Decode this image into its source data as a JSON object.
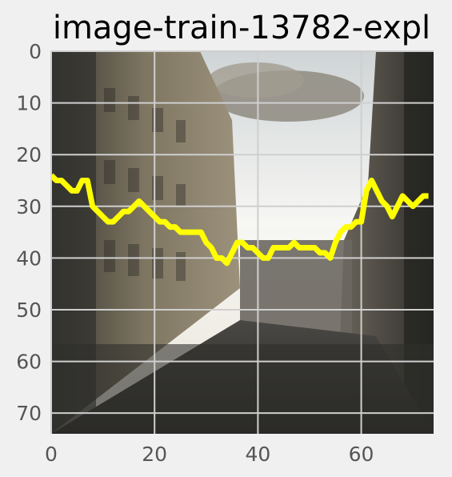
{
  "chart_data": {
    "type": "image",
    "title": "image-train-13782-expl",
    "image_description_colors": {
      "overlay_line": "#ffff00",
      "grid": "#cfcfcf",
      "background": "#f0f0f0"
    },
    "xlim": [
      0,
      74
    ],
    "ylim": [
      74,
      0
    ],
    "x_ticks": [
      0,
      20,
      40,
      60
    ],
    "y_ticks": [
      0,
      10,
      20,
      30,
      40,
      50,
      60,
      70
    ],
    "grid": true,
    "overlay_line": {
      "x": [
        0,
        1,
        2,
        3,
        4,
        5,
        6,
        7,
        8,
        9,
        10,
        11,
        12,
        13,
        14,
        15,
        16,
        17,
        18,
        19,
        20,
        21,
        22,
        23,
        24,
        25,
        26,
        27,
        28,
        29,
        30,
        31,
        32,
        33,
        34,
        35,
        36,
        37,
        38,
        39,
        40,
        41,
        42,
        43,
        44,
        45,
        46,
        47,
        48,
        49,
        50,
        51,
        52,
        53,
        54,
        55,
        56,
        57,
        58,
        59,
        60,
        61,
        62,
        63,
        64,
        65,
        66,
        67,
        68,
        69,
        70,
        71,
        72,
        73
      ],
      "y": [
        24,
        25,
        25,
        26,
        27,
        27,
        25,
        25,
        30,
        31,
        32,
        33,
        33,
        32,
        31,
        31,
        30,
        29,
        30,
        31,
        32,
        33,
        33,
        34,
        34,
        35,
        35,
        35,
        35,
        35,
        37,
        38,
        40,
        40,
        41,
        39,
        37,
        37,
        38,
        38,
        39,
        40,
        40,
        38,
        38,
        38,
        38,
        37,
        38,
        38,
        38,
        38,
        39,
        39,
        40,
        37,
        35,
        34,
        34,
        33,
        33,
        27,
        25,
        27,
        29,
        30,
        32,
        30,
        28,
        29,
        30,
        29,
        28,
        28
      ]
    }
  }
}
